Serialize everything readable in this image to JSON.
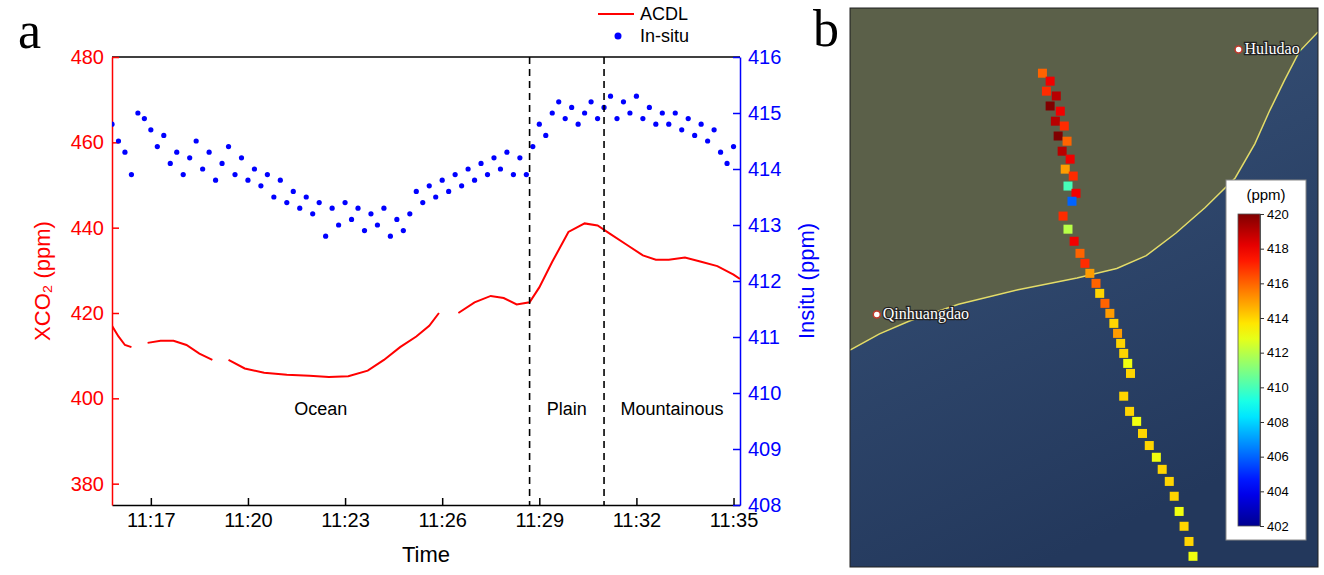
{
  "chart_data": [
    {
      "type": "line",
      "panel": "a",
      "xlabel": "Time",
      "ylabel": "XCO₂ (ppm)",
      "y2label": "Insitu (ppm)",
      "xlim": [
        15.8,
        35.2
      ],
      "xticks": [
        {
          "value": 17,
          "label": "11:17"
        },
        {
          "value": 20,
          "label": "11:20"
        },
        {
          "value": 23,
          "label": "11:23"
        },
        {
          "value": 26,
          "label": "11:26"
        },
        {
          "value": 29,
          "label": "11:29"
        },
        {
          "value": 32,
          "label": "11:32"
        },
        {
          "value": 35,
          "label": "11:35"
        }
      ],
      "ylim": [
        375,
        480
      ],
      "yticks": [
        380,
        400,
        420,
        440,
        460,
        480
      ],
      "y2lim": [
        408,
        416
      ],
      "y2ticks": [
        408,
        409,
        410,
        411,
        412,
        413,
        414,
        415,
        416
      ],
      "legend": "top-right",
      "series": [
        {
          "name": "ACDL",
          "color": "#ff0000",
          "type": "line",
          "line_style": "solid",
          "x": [
            15.8,
            16.0,
            16.2,
            16.4,
            16.6,
            16.9,
            17.3,
            17.7,
            18.1,
            18.5,
            18.9,
            19.1,
            19.4,
            19.9,
            20.5,
            21.2,
            21.9,
            22.5,
            23.1,
            23.7,
            24.2,
            24.7,
            25.2,
            25.6,
            25.9,
            26.2,
            26.5,
            27.0,
            27.5,
            27.9,
            28.3,
            28.7,
            29.0,
            29.4,
            29.9,
            30.4,
            30.8,
            31.2,
            31.7,
            32.2,
            32.6,
            33.0,
            33.5,
            34.0,
            34.5,
            35.0,
            35.2
          ],
          "values": [
            417,
            414.5,
            412.5,
            412,
            null,
            413,
            413.5,
            413.5,
            412.5,
            410.5,
            409,
            null,
            409,
            407,
            406,
            405.5,
            405.3,
            405,
            405.2,
            406.5,
            409,
            412,
            414.5,
            417,
            420,
            null,
            420,
            422.5,
            424,
            423.5,
            422,
            422.5,
            426,
            432,
            439,
            441,
            440.5,
            438.5,
            436,
            433.5,
            432.5,
            432.5,
            433,
            432,
            431,
            429,
            428
          ]
        },
        {
          "name": "In-situ",
          "color": "#0000ff",
          "type": "scatter",
          "marker": "circle",
          "axis": "y2",
          "x": [
            15.8,
            16.0,
            16.2,
            16.4,
            16.6,
            16.8,
            17.0,
            17.2,
            17.4,
            17.6,
            17.8,
            18.0,
            18.2,
            18.4,
            18.6,
            18.8,
            19.0,
            19.2,
            19.4,
            19.6,
            19.8,
            20.0,
            20.2,
            20.4,
            20.6,
            20.8,
            21.0,
            21.2,
            21.4,
            21.6,
            21.8,
            22.0,
            22.2,
            22.4,
            22.6,
            22.8,
            23.0,
            23.2,
            23.4,
            23.6,
            23.8,
            24.0,
            24.2,
            24.4,
            24.6,
            24.8,
            25.0,
            25.2,
            25.4,
            25.6,
            25.8,
            26.0,
            26.2,
            26.4,
            26.6,
            26.8,
            27.0,
            27.2,
            27.4,
            27.6,
            27.8,
            28.0,
            28.2,
            28.4,
            28.6,
            28.8,
            29.0,
            29.2,
            29.4,
            29.6,
            29.8,
            30.0,
            30.2,
            30.4,
            30.6,
            30.8,
            31.0,
            31.2,
            31.4,
            31.6,
            31.8,
            32.0,
            32.2,
            32.4,
            32.6,
            32.8,
            33.0,
            33.2,
            33.4,
            33.6,
            33.8,
            34.0,
            34.2,
            34.4,
            34.6,
            34.8,
            35.0
          ],
          "values": [
            414.8,
            414.5,
            414.3,
            413.9,
            415.0,
            414.9,
            414.7,
            414.4,
            414.6,
            414.1,
            414.3,
            413.9,
            414.2,
            414.5,
            414.0,
            414.3,
            413.8,
            414.1,
            414.4,
            413.9,
            414.2,
            413.8,
            414.0,
            413.7,
            413.9,
            413.5,
            413.8,
            413.4,
            413.6,
            413.3,
            413.5,
            413.2,
            413.4,
            412.8,
            413.3,
            413.0,
            413.4,
            413.1,
            413.3,
            412.9,
            413.2,
            413.0,
            413.3,
            412.8,
            413.1,
            412.9,
            413.2,
            413.6,
            413.4,
            413.7,
            413.5,
            413.8,
            413.6,
            413.9,
            413.7,
            414.0,
            413.8,
            414.1,
            413.9,
            414.2,
            414.0,
            414.3,
            413.9,
            414.2,
            413.9,
            414.4,
            414.8,
            414.6,
            415.0,
            415.2,
            414.9,
            415.1,
            414.8,
            415.0,
            415.2,
            414.9,
            415.1,
            415.3,
            414.9,
            415.2,
            415.0,
            415.3,
            414.9,
            415.1,
            414.8,
            415.0,
            414.8,
            415.0,
            414.7,
            414.9,
            414.6,
            414.8,
            414.5,
            414.7,
            414.3,
            414.1,
            414.4
          ]
        }
      ],
      "dividers": [
        28.7,
        31.0
      ],
      "annotations": [
        "Ocean",
        "Plain",
        "Mountainous"
      ]
    },
    {
      "type": "scatter",
      "panel": "b",
      "marker": "square",
      "tick_labels": false,
      "xlim": [
        119.5,
        121.02
      ],
      "ylim": [
        39.2,
        40.82
      ],
      "x": [
        120.125,
        120.15,
        120.138,
        120.17,
        120.15,
        120.183,
        120.167,
        120.196,
        120.176,
        120.205,
        120.189,
        120.215,
        120.199,
        120.225,
        120.208,
        120.234,
        120.221,
        120.192,
        120.208,
        120.228,
        120.247,
        120.263,
        120.279,
        120.299,
        120.311,
        120.328,
        120.344,
        120.357,
        120.369,
        120.379,
        120.389,
        120.402,
        120.411,
        120.389,
        120.408,
        120.431,
        120.45,
        120.472,
        120.495,
        120.514,
        120.537,
        120.553,
        120.569,
        120.585,
        120.601,
        120.614
      ],
      "values": [
        40.631,
        40.608,
        40.579,
        40.565,
        40.536,
        40.521,
        40.492,
        40.478,
        40.449,
        40.434,
        40.405,
        40.382,
        40.353,
        40.333,
        40.304,
        40.283,
        40.26,
        40.217,
        40.179,
        40.144,
        40.109,
        40.08,
        40.051,
        40.022,
        39.993,
        39.964,
        39.935,
        39.906,
        39.877,
        39.848,
        39.819,
        39.79,
        39.761,
        39.695,
        39.651,
        39.622,
        39.587,
        39.552,
        39.518,
        39.483,
        39.448,
        39.405,
        39.361,
        39.318,
        39.274,
        39.231
      ],
      "color_values": [
        416,
        418,
        417,
        419,
        420,
        418,
        419,
        417,
        420,
        416,
        419,
        418,
        415,
        417,
        410,
        418,
        406,
        417,
        412,
        418,
        416,
        417,
        415,
        416,
        414,
        416,
        415,
        414,
        415,
        414,
        414,
        413,
        414,
        414,
        414,
        413,
        414,
        414,
        413,
        414,
        414,
        414,
        413,
        414,
        414,
        413
      ],
      "color_range": [
        402,
        420
      ],
      "color_ticks": [
        402,
        404,
        406,
        408,
        410,
        412,
        414,
        416,
        418,
        420
      ],
      "color_title": "(ppm)",
      "places": [
        {
          "name": "Qinhuangdao",
          "x": 119.587,
          "y": 39.932
        },
        {
          "name": "Huludao",
          "x": 120.762,
          "y": 40.7
        }
      ]
    }
  ]
}
